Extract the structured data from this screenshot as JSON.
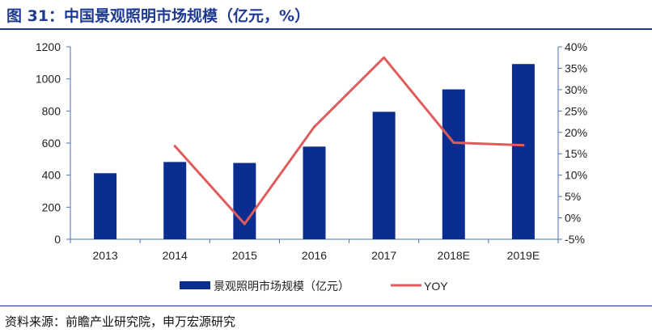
{
  "figure_title": "图 31：中国景观照明市场规模（亿元，%）",
  "source": "资料来源：前瞻产业研究院，申万宏源研究",
  "colors": {
    "title": "#1f3a93",
    "bar": "#0b2d8f",
    "line": "#e05c5c",
    "axis": "#4d6fb5"
  },
  "chart_data": {
    "type": "bar",
    "categories": [
      "2013",
      "2014",
      "2015",
      "2016",
      "2017",
      "2018E",
      "2019E"
    ],
    "series": [
      {
        "name": "景观照明市场规模（亿元）",
        "type": "bar",
        "axis": "left",
        "values": [
          412,
          482,
          476,
          578,
          795,
          935,
          1093
        ]
      },
      {
        "name": "YOY",
        "type": "line",
        "axis": "right",
        "values": [
          null,
          16.8,
          -1.4,
          21.3,
          37.5,
          17.6,
          17.0
        ]
      }
    ],
    "y_left": {
      "lim": [
        0,
        1200
      ],
      "ticks": [
        "0",
        "200",
        "400",
        "600",
        "800",
        "1000",
        "1200"
      ]
    },
    "y_right": {
      "lim": [
        -5,
        40
      ],
      "ticks": [
        "-5%",
        "0%",
        "5%",
        "10%",
        "15%",
        "20%",
        "25%",
        "30%",
        "35%",
        "40%"
      ]
    },
    "legend_position": "bottom",
    "grid": false
  }
}
